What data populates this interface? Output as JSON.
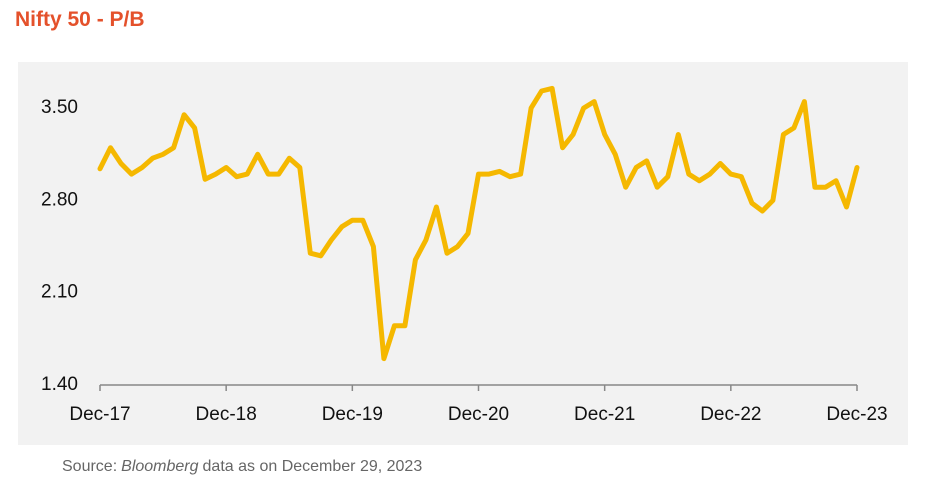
{
  "chart_data": {
    "type": "line",
    "title": "Nifty 50 - P/B",
    "source": {
      "lead": "Source:",
      "emphasis": "Bloomberg",
      "rest": "data as on December 29, 2023"
    },
    "x": [
      "2017-12",
      "2018-01",
      "2018-02",
      "2018-03",
      "2018-04",
      "2018-05",
      "2018-06",
      "2018-07",
      "2018-08",
      "2018-09",
      "2018-10",
      "2018-11",
      "2018-12",
      "2019-01",
      "2019-02",
      "2019-03",
      "2019-04",
      "2019-05",
      "2019-06",
      "2019-07",
      "2019-08",
      "2019-09",
      "2019-10",
      "2019-11",
      "2019-12",
      "2020-01",
      "2020-02",
      "2020-03",
      "2020-04",
      "2020-05",
      "2020-06",
      "2020-07",
      "2020-08",
      "2020-09",
      "2020-10",
      "2020-11",
      "2020-12",
      "2021-01",
      "2021-02",
      "2021-03",
      "2021-04",
      "2021-05",
      "2021-06",
      "2021-07",
      "2021-08",
      "2021-09",
      "2021-10",
      "2021-11",
      "2021-12",
      "2022-01",
      "2022-02",
      "2022-03",
      "2022-04",
      "2022-05",
      "2022-06",
      "2022-07",
      "2022-08",
      "2022-09",
      "2022-10",
      "2022-11",
      "2022-12",
      "2023-01",
      "2023-02",
      "2023-03",
      "2023-04",
      "2023-05",
      "2023-06",
      "2023-07",
      "2023-08",
      "2023-09",
      "2023-10",
      "2023-11",
      "2023-12"
    ],
    "series": [
      {
        "name": "Nifty 50 P/B",
        "color": "#f5b800",
        "values": [
          3.04,
          3.2,
          3.08,
          3.0,
          3.05,
          3.12,
          3.15,
          3.2,
          3.45,
          3.35,
          2.96,
          3.0,
          3.05,
          2.98,
          3.0,
          3.15,
          3.0,
          3.0,
          3.12,
          3.05,
          2.4,
          2.38,
          2.5,
          2.6,
          2.65,
          2.65,
          2.45,
          1.6,
          1.85,
          1.85,
          2.35,
          2.5,
          2.75,
          2.4,
          2.45,
          2.55,
          3.0,
          3.0,
          3.02,
          2.98,
          3.0,
          3.5,
          3.63,
          3.65,
          3.2,
          3.3,
          3.5,
          3.55,
          3.3,
          3.15,
          2.9,
          3.05,
          3.1,
          2.9,
          2.98,
          3.3,
          3.0,
          2.95,
          3.0,
          3.08,
          3.0,
          2.98,
          2.78,
          2.72,
          2.8,
          3.3,
          3.35,
          3.55,
          2.9,
          2.9,
          2.95,
          2.75,
          3.05
        ]
      }
    ],
    "xlim": [
      "2017-12",
      "2023-12"
    ],
    "xticks": [
      {
        "value": "2017-12",
        "label": "Dec-17"
      },
      {
        "value": "2018-12",
        "label": "Dec-18"
      },
      {
        "value": "2019-12",
        "label": "Dec-19"
      },
      {
        "value": "2020-12",
        "label": "Dec-20"
      },
      {
        "value": "2021-12",
        "label": "Dec-21"
      },
      {
        "value": "2022-12",
        "label": "Dec-22"
      },
      {
        "value": "2023-12",
        "label": "Dec-23"
      }
    ],
    "ylim": [
      1.4,
      3.85
    ],
    "yticks": [
      {
        "value": 1.4,
        "label": "1.40"
      },
      {
        "value": 2.1,
        "label": "2.10"
      },
      {
        "value": 2.8,
        "label": "2.80"
      },
      {
        "value": 3.5,
        "label": "3.50"
      }
    ],
    "grid": false
  }
}
